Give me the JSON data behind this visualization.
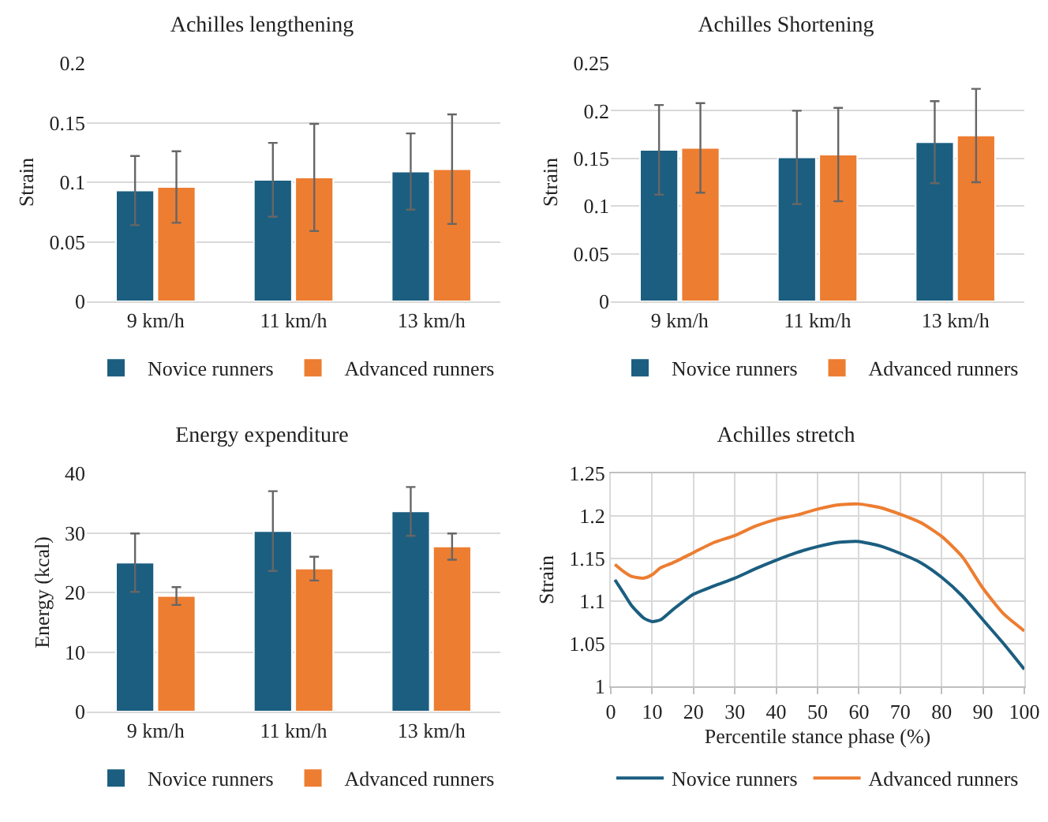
{
  "chart_data": [
    {
      "type": "bar",
      "title": "Achilles lengthening",
      "ylabel": "Strain",
      "categories": [
        "9 km/h",
        "11 km/h",
        "13 km/h"
      ],
      "ylim": [
        0,
        0.2
      ],
      "yticks": [
        0,
        0.05,
        0.1,
        0.15,
        0.2
      ],
      "grid": "y",
      "legend": "bottom",
      "series": [
        {
          "name": "Novice runners",
          "color": "#1b5e80",
          "values": [
            0.093,
            0.102,
            0.109
          ],
          "errors": [
            0.029,
            0.031,
            0.032
          ]
        },
        {
          "name": "Advanced runners",
          "color": "#ed7d31",
          "values": [
            0.096,
            0.104,
            0.111
          ],
          "errors": [
            0.03,
            0.045,
            0.046
          ]
        }
      ]
    },
    {
      "type": "bar",
      "title": "Achilles Shortening",
      "ylabel": "Strain",
      "categories": [
        "9 km/h",
        "11 km/h",
        "13 km/h"
      ],
      "ylim": [
        0,
        0.25
      ],
      "yticks": [
        0,
        0.05,
        0.1,
        0.15,
        0.2,
        0.25
      ],
      "grid": "y",
      "legend": "bottom",
      "series": [
        {
          "name": "Novice runners",
          "color": "#1b5e80",
          "values": [
            0.159,
            0.151,
            0.167
          ],
          "errors": [
            0.047,
            0.049,
            0.043
          ]
        },
        {
          "name": "Advanced runners",
          "color": "#ed7d31",
          "values": [
            0.161,
            0.154,
            0.174
          ],
          "errors": [
            0.047,
            0.049,
            0.049
          ]
        }
      ]
    },
    {
      "type": "bar",
      "title": "Energy expenditure",
      "ylabel": "Energy (kcal)",
      "categories": [
        "9 km/h",
        "11 km/h",
        "13 km/h"
      ],
      "ylim": [
        0,
        40
      ],
      "yticks": [
        0,
        10,
        20,
        30,
        40
      ],
      "grid": "y",
      "legend": "bottom",
      "series": [
        {
          "name": "Novice runners",
          "color": "#1b5e80",
          "values": [
            25,
            30.3,
            33.6
          ],
          "errors": [
            4.9,
            6.7,
            4.1
          ]
        },
        {
          "name": "Advanced runners",
          "color": "#ed7d31",
          "values": [
            19.4,
            24,
            27.7
          ],
          "errors": [
            1.5,
            2,
            2.2
          ]
        }
      ]
    },
    {
      "type": "line",
      "title": "Achilles stretch",
      "ylabel": "Strain",
      "xlabel": "Percentile stance phase (%)",
      "xlim": [
        0,
        100
      ],
      "xticks": [
        0,
        10,
        20,
        30,
        40,
        50,
        60,
        70,
        80,
        90,
        100
      ],
      "ylim": [
        1,
        1.25
      ],
      "yticks": [
        1,
        1.05,
        1.1,
        1.15,
        1.2,
        1.25
      ],
      "grid": true,
      "legend": "bottom",
      "x": [
        1,
        3,
        5,
        8,
        10,
        12,
        15,
        20,
        25,
        30,
        35,
        40,
        45,
        50,
        55,
        58,
        60,
        65,
        70,
        75,
        80,
        85,
        90,
        95,
        100
      ],
      "series": [
        {
          "name": "Novice runners",
          "color": "#1b5e80",
          "values": [
            1.125,
            1.11,
            1.095,
            1.08,
            1.076,
            1.078,
            1.09,
            1.108,
            1.118,
            1.127,
            1.138,
            1.148,
            1.157,
            1.164,
            1.169,
            1.17,
            1.17,
            1.165,
            1.156,
            1.145,
            1.128,
            1.106,
            1.078,
            1.05,
            1.02
          ]
        },
        {
          "name": "Advanced runners",
          "color": "#ed7d31",
          "values": [
            1.143,
            1.135,
            1.129,
            1.127,
            1.131,
            1.139,
            1.145,
            1.157,
            1.169,
            1.177,
            1.188,
            1.196,
            1.201,
            1.208,
            1.213,
            1.214,
            1.214,
            1.21,
            1.202,
            1.192,
            1.176,
            1.152,
            1.115,
            1.085,
            1.065
          ]
        }
      ]
    }
  ]
}
